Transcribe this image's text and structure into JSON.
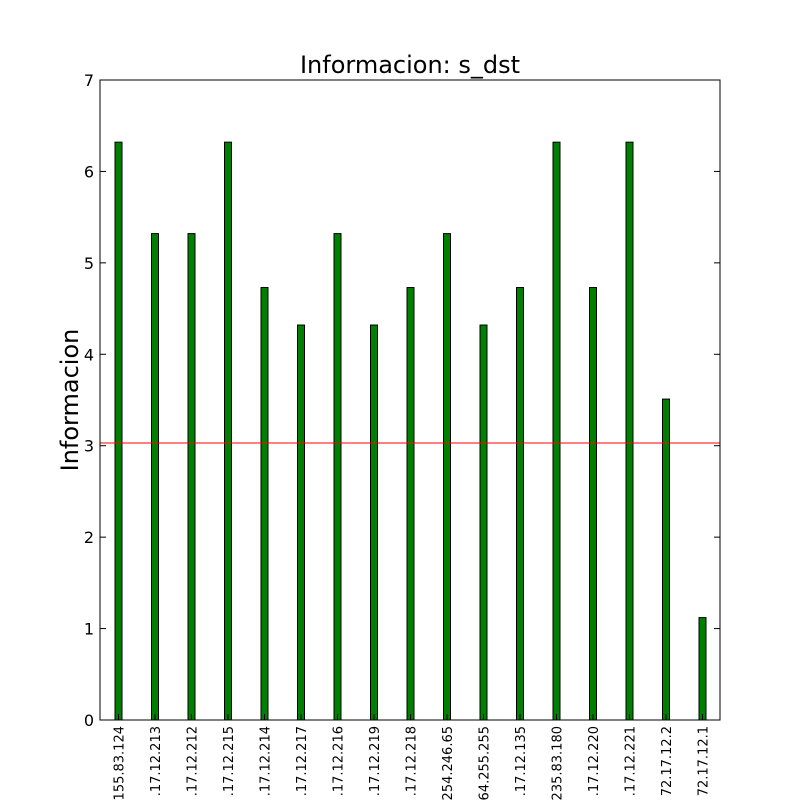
{
  "chart_data": {
    "type": "bar",
    "title": "Informacion: s_dst",
    "xlabel": "",
    "ylabel": "Informacion",
    "ylim": [
      0,
      7
    ],
    "yticks": [
      0,
      1,
      2,
      3,
      4,
      5,
      6,
      7
    ],
    "grid": false,
    "categories": [
      "155.83.124",
      ".17.12.213",
      ".17.12.212",
      ".17.12.215",
      ".17.12.214",
      ".17.12.217",
      ".17.12.216",
      ".17.12.219",
      ".17.12.218",
      "254.246.65",
      "64.255.255",
      ".17.12.135",
      "235.83.180",
      ".17.12.220",
      ".17.12.221",
      "72.17.12.2",
      "72.17.12.1"
    ],
    "values": [
      6.32,
      5.32,
      5.32,
      6.32,
      4.73,
      4.32,
      5.32,
      4.32,
      4.73,
      5.32,
      4.32,
      4.73,
      6.32,
      4.73,
      6.32,
      3.51,
      1.12
    ],
    "reference_line": {
      "value": 3.03,
      "color": "#ff0000"
    },
    "colors": {
      "bar": "#008000",
      "bar_edge": "#000000"
    }
  }
}
